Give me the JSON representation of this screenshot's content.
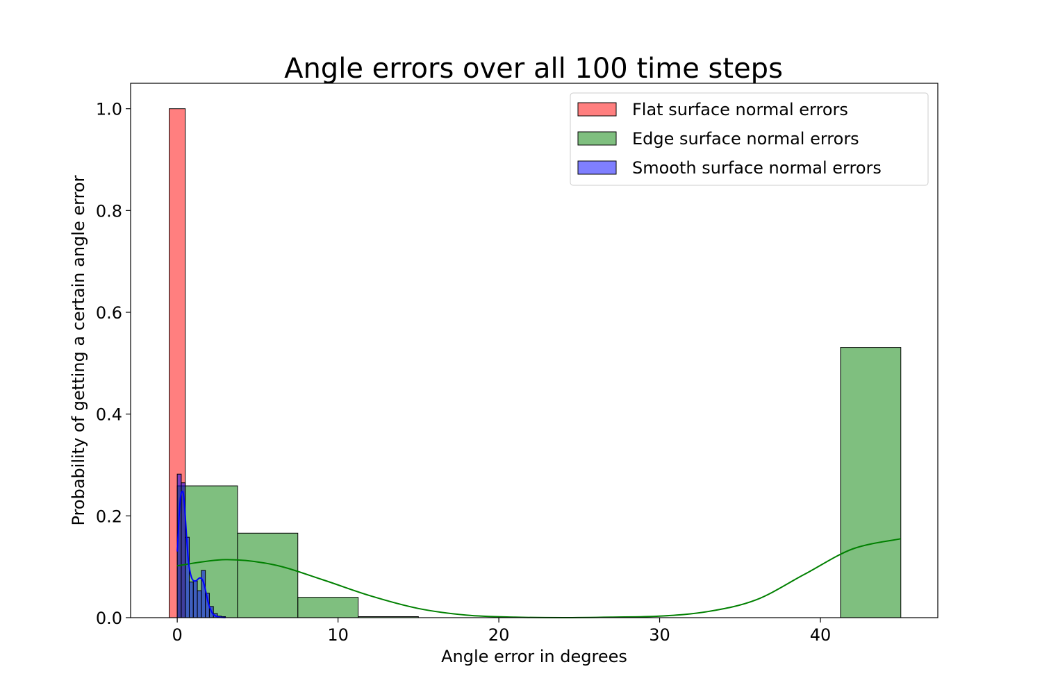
{
  "chart_data": {
    "type": "histogram",
    "title": "Angle errors over all 100 time steps",
    "xlabel": "Angle error in degrees",
    "ylabel": "Probability of getting a certain angle error",
    "xlim": [
      -2.9,
      47.3
    ],
    "ylim": [
      0,
      1.05
    ],
    "xticks": [
      0,
      10,
      20,
      30,
      40
    ],
    "yticks": [
      0.0,
      0.2,
      0.4,
      0.6,
      0.8,
      1.0
    ],
    "ytick_labels": [
      "0.0",
      "0.2",
      "0.4",
      "0.6",
      "0.8",
      "1.0"
    ],
    "legend_position": "top-right",
    "grid": false,
    "series": [
      {
        "name": "Flat surface normal errors",
        "color": "#ff0000",
        "bins": [
          {
            "x0": -0.5,
            "x1": 0.5,
            "value": 1.0
          }
        ]
      },
      {
        "name": "Edge surface normal errors",
        "color": "#008000",
        "bins": [
          {
            "x0": 0.0,
            "x1": 3.75,
            "value": 0.259
          },
          {
            "x0": 3.75,
            "x1": 7.5,
            "value": 0.166
          },
          {
            "x0": 7.5,
            "x1": 11.25,
            "value": 0.04
          },
          {
            "x0": 11.25,
            "x1": 15.0,
            "value": 0.002
          },
          {
            "x0": 41.25,
            "x1": 45.0,
            "value": 0.531
          }
        ],
        "kde": {
          "x": [
            0,
            3,
            6,
            9,
            12,
            15,
            18,
            21,
            24,
            27,
            30,
            33,
            36,
            39,
            42,
            45
          ],
          "y": [
            0.102,
            0.114,
            0.104,
            0.075,
            0.043,
            0.018,
            0.005,
            0.001,
            0.0,
            0.001,
            0.003,
            0.012,
            0.035,
            0.085,
            0.135,
            0.155
          ]
        }
      },
      {
        "name": "Smooth surface normal errors",
        "color": "#0000ff",
        "bins": [
          {
            "x0": 0.0,
            "x1": 0.25,
            "value": 0.282
          },
          {
            "x0": 0.25,
            "x1": 0.5,
            "value": 0.265
          },
          {
            "x0": 0.5,
            "x1": 0.75,
            "value": 0.158
          },
          {
            "x0": 0.75,
            "x1": 1.0,
            "value": 0.07
          },
          {
            "x0": 1.0,
            "x1": 1.25,
            "value": 0.072
          },
          {
            "x0": 1.25,
            "x1": 1.5,
            "value": 0.053
          },
          {
            "x0": 1.5,
            "x1": 1.75,
            "value": 0.093
          },
          {
            "x0": 1.75,
            "x1": 2.0,
            "value": 0.048
          },
          {
            "x0": 2.0,
            "x1": 2.25,
            "value": 0.022
          },
          {
            "x0": 2.25,
            "x1": 2.5,
            "value": 0.008
          },
          {
            "x0": 2.5,
            "x1": 2.75,
            "value": 0.003
          },
          {
            "x0": 2.75,
            "x1": 3.0,
            "value": 0.002
          }
        ],
        "kde": {
          "x": [
            0.0,
            0.1,
            0.2,
            0.3,
            0.4,
            0.5,
            0.6,
            0.7,
            0.8,
            0.9,
            1.0,
            1.1,
            1.2,
            1.3,
            1.4,
            1.5,
            1.6,
            1.7,
            1.8,
            1.9,
            2.0,
            2.1,
            2.2,
            2.3,
            2.4,
            2.5,
            2.6,
            2.8,
            3.0
          ],
          "y": [
            0.13,
            0.19,
            0.235,
            0.248,
            0.24,
            0.2,
            0.15,
            0.11,
            0.09,
            0.078,
            0.073,
            0.072,
            0.073,
            0.076,
            0.078,
            0.077,
            0.072,
            0.062,
            0.048,
            0.033,
            0.022,
            0.014,
            0.008,
            0.005,
            0.003,
            0.002,
            0.001,
            0.0005,
            0.0002
          ]
        }
      }
    ]
  }
}
